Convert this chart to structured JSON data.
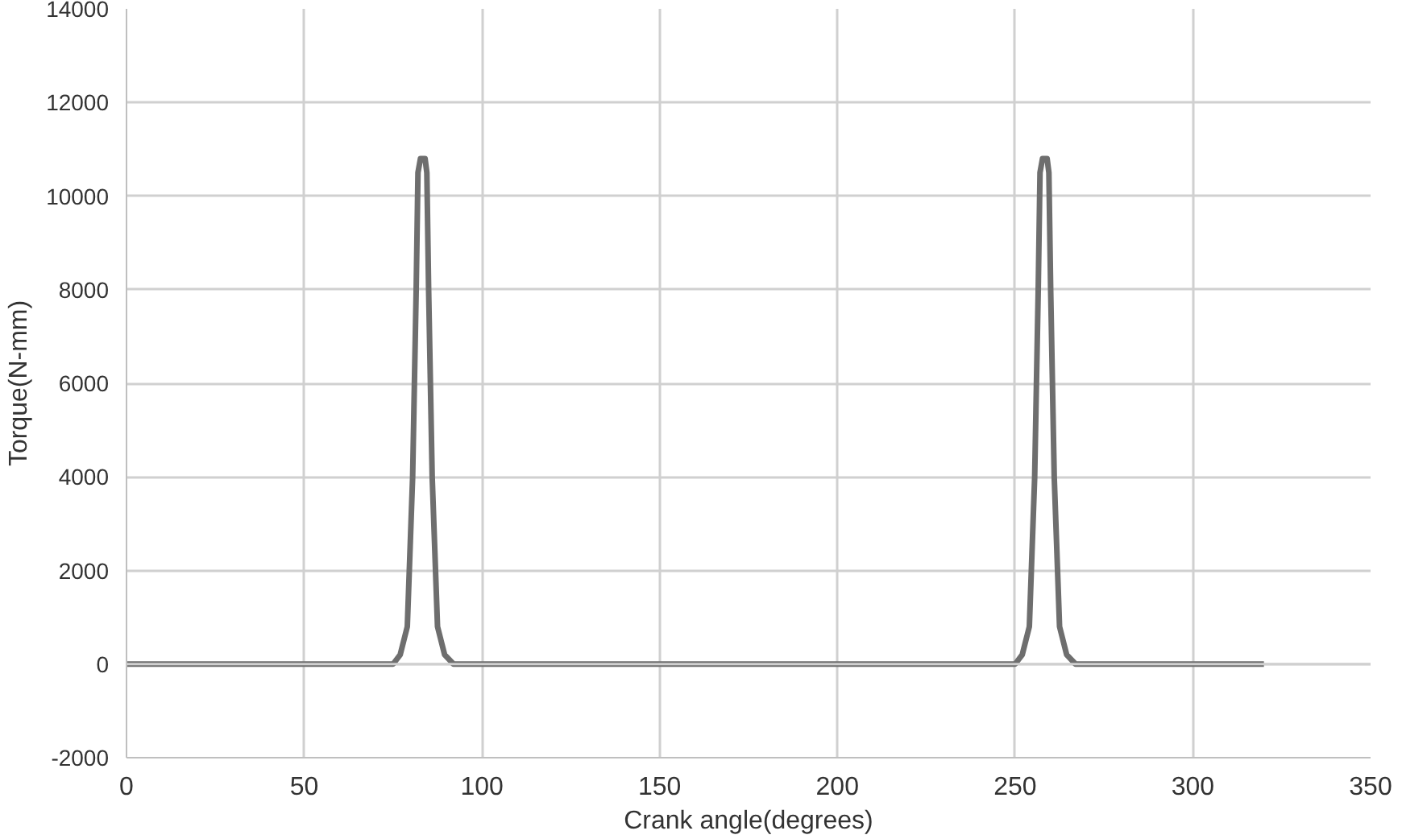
{
  "chart_data": {
    "type": "line",
    "xlabel": "Crank angle(degrees)",
    "ylabel": "Torque(N-mm)",
    "x": [
      0,
      50,
      75,
      77,
      79,
      80.5,
      81.5,
      82,
      82.7,
      84,
      84.5,
      85,
      86,
      87.5,
      89.5,
      92,
      150,
      200,
      250,
      252,
      254,
      255.5,
      256.5,
      257,
      257.7,
      259,
      259.5,
      260,
      261,
      262.5,
      264.5,
      267,
      300,
      320
    ],
    "series": [
      {
        "color": "#6e6e6e",
        "values": [
          0,
          0,
          0,
          200,
          800,
          4000,
          8000,
          10500,
          10800,
          10800,
          10500,
          8000,
          4000,
          800,
          200,
          0,
          0,
          0,
          0,
          200,
          800,
          4000,
          8000,
          10500,
          10800,
          10800,
          10500,
          8000,
          4000,
          800,
          200,
          0,
          0,
          0
        ]
      }
    ],
    "xlim": [
      0,
      350
    ],
    "xticks": [
      0,
      50,
      100,
      150,
      200,
      250,
      300,
      350
    ],
    "ylim": [
      -2000,
      14000
    ],
    "yticks": [
      -2000,
      0,
      2000,
      4000,
      6000,
      8000,
      10000,
      12000,
      14000
    ],
    "grid": true,
    "marker": "none",
    "line_style": "solid"
  }
}
